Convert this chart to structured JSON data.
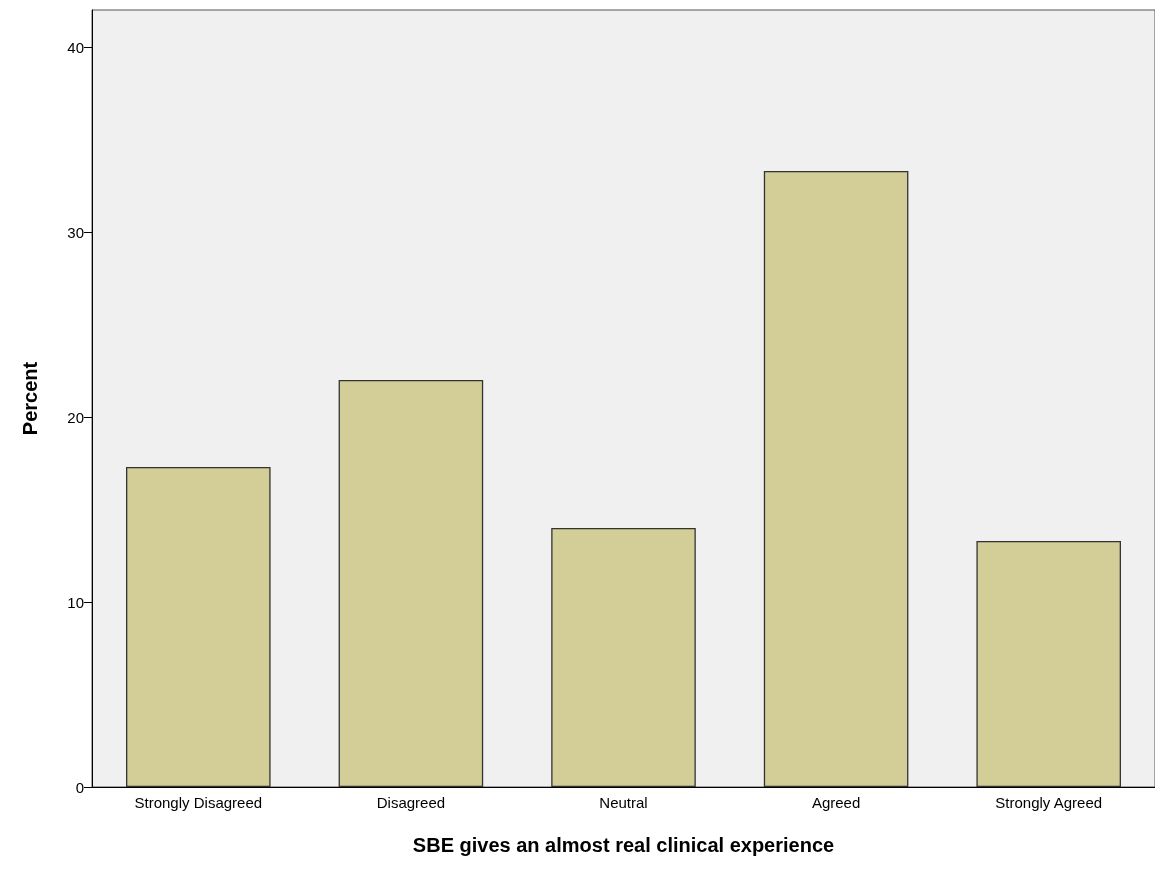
{
  "chart_data": {
    "type": "bar",
    "xlabel": "SBE gives an almost real clinical experience",
    "ylabel": "Percent",
    "categories": [
      "Strongly Disagreed",
      "Disagreed",
      "Neutral",
      "Agreed",
      "Strongly Agreed"
    ],
    "values": [
      17.3,
      22.0,
      14.0,
      33.3,
      13.3
    ],
    "color": "#d3cd97",
    "ylim": [
      0,
      42
    ],
    "yticks": [
      0,
      10,
      20,
      30,
      40
    ],
    "grid": false
  }
}
